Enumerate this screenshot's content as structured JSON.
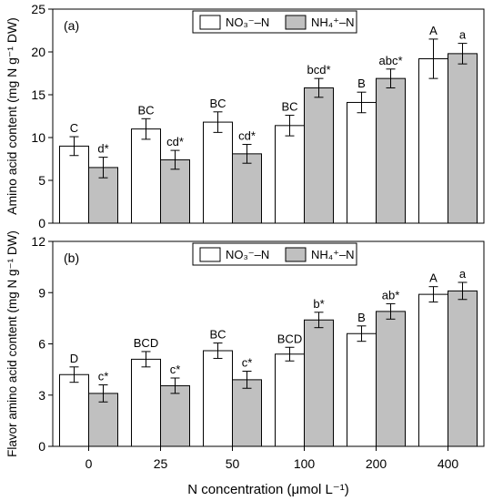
{
  "figure": {
    "xlabel": "N concentration (μmol L⁻¹)"
  },
  "colors": {
    "nitrate_bar": "#ffffff",
    "ammonium_bar": "#c0c0c0",
    "stroke": "#000000"
  },
  "chart_data": [
    {
      "type": "bar",
      "panel_label": "(a)",
      "ylabel": "Amino acid content (mg N g⁻¹ DW)",
      "ylim": [
        0,
        25
      ],
      "yticks": [
        0,
        5,
        10,
        15,
        20,
        25
      ],
      "categories": [
        "0",
        "25",
        "50",
        "100",
        "200",
        "400"
      ],
      "legend_position": "top-center",
      "series": [
        {
          "name": "NO₃⁻–N",
          "color": "#ffffff",
          "values": [
            9.0,
            11.0,
            11.8,
            11.4,
            14.1,
            19.2
          ],
          "errors": [
            1.1,
            1.2,
            1.2,
            1.2,
            1.2,
            2.3
          ],
          "letters": [
            "C",
            "BC",
            "BC",
            "BC",
            "B",
            "A"
          ]
        },
        {
          "name": "NH₄⁺–N",
          "color": "#c0c0c0",
          "values": [
            6.5,
            7.4,
            8.1,
            15.8,
            16.9,
            19.8
          ],
          "errors": [
            1.2,
            1.1,
            1.1,
            1.1,
            1.1,
            1.2
          ],
          "letters": [
            "d*",
            "cd*",
            "cd*",
            "bcd*",
            "abc*",
            "a"
          ]
        }
      ]
    },
    {
      "type": "bar",
      "panel_label": "(b)",
      "ylabel": "Flavor amino acid content (mg N g⁻¹ DW)",
      "ylim": [
        0,
        12
      ],
      "yticks": [
        0,
        3,
        6,
        9,
        12
      ],
      "categories": [
        "0",
        "25",
        "50",
        "100",
        "200",
        "400"
      ],
      "legend_position": "top-center",
      "series": [
        {
          "name": "NO₃⁻–N",
          "color": "#ffffff",
          "values": [
            4.2,
            5.1,
            5.6,
            5.4,
            6.6,
            8.9
          ],
          "errors": [
            0.45,
            0.45,
            0.45,
            0.4,
            0.45,
            0.45
          ],
          "letters": [
            "D",
            "BCD",
            "BC",
            "BCD",
            "B",
            "A"
          ]
        },
        {
          "name": "NH₄⁺–N",
          "color": "#c0c0c0",
          "values": [
            3.1,
            3.55,
            3.9,
            7.4,
            7.9,
            9.1
          ],
          "errors": [
            0.5,
            0.45,
            0.5,
            0.45,
            0.45,
            0.5
          ],
          "letters": [
            "c*",
            "c*",
            "c*",
            "b*",
            "ab*",
            "a"
          ]
        }
      ]
    }
  ]
}
